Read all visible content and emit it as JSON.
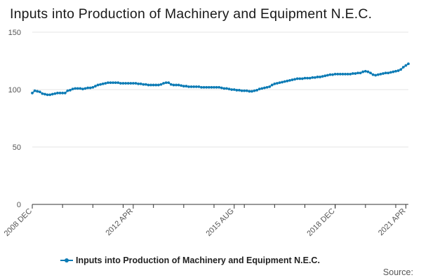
{
  "chart_data": {
    "type": "line",
    "title": "Inputs into Production of Machinery and Equipment N.E.C.",
    "source_label": "Source:",
    "ylim": [
      0,
      150
    ],
    "y_ticks": [
      "0",
      "50",
      "100",
      "150"
    ],
    "x_tick_labels": [
      {
        "label": "2008 DEC",
        "index": 0
      },
      {
        "label": "2012 APR",
        "index": 40
      },
      {
        "label": "2015 AUG",
        "index": 80
      },
      {
        "label": "2018 DEC",
        "index": 120
      },
      {
        "label": "2021 APR",
        "index": 148
      }
    ],
    "grid": "horizontal",
    "legend_position": "bottom",
    "colors": {
      "series": "#0c7bb5",
      "grid": "#e6e6e6",
      "axis": "#333333"
    },
    "series": [
      {
        "name": "Inputs into Production of Machinery and Equipment N.E.C.",
        "values": [
          97.0,
          99.0,
          98.5,
          98.0,
          96.5,
          96.0,
          95.5,
          95.5,
          96.0,
          96.5,
          97.0,
          97.0,
          97.0,
          97.0,
          99.0,
          99.5,
          100.5,
          101.0,
          101.0,
          101.0,
          100.5,
          101.0,
          101.5,
          101.5,
          102.0,
          103.0,
          104.0,
          104.5,
          105.0,
          105.5,
          106.0,
          106.0,
          106.0,
          106.0,
          106.0,
          105.5,
          105.5,
          105.5,
          105.5,
          105.5,
          105.5,
          105.5,
          105.0,
          105.0,
          104.5,
          104.5,
          104.0,
          104.0,
          104.0,
          104.0,
          104.0,
          104.5,
          105.5,
          106.0,
          106.0,
          104.5,
          104.0,
          104.0,
          104.0,
          103.5,
          103.0,
          103.0,
          102.5,
          102.5,
          102.5,
          102.5,
          102.5,
          102.0,
          102.0,
          102.0,
          102.0,
          102.0,
          102.0,
          102.0,
          102.0,
          101.5,
          101.0,
          101.0,
          100.5,
          100.0,
          100.0,
          99.5,
          99.5,
          99.0,
          99.0,
          99.0,
          98.5,
          98.5,
          99.0,
          99.5,
          100.5,
          101.0,
          101.5,
          102.0,
          102.5,
          104.0,
          105.0,
          105.5,
          106.0,
          106.5,
          107.0,
          107.5,
          108.0,
          108.5,
          109.0,
          109.5,
          109.5,
          109.5,
          110.0,
          110.0,
          110.0,
          110.5,
          110.5,
          111.0,
          111.0,
          111.5,
          112.0,
          112.5,
          113.0,
          113.0,
          113.5,
          113.5,
          113.5,
          113.5,
          113.5,
          113.5,
          113.5,
          114.0,
          114.0,
          114.5,
          114.5,
          115.5,
          116.0,
          115.5,
          114.5,
          113.0,
          112.5,
          113.0,
          113.5,
          114.0,
          114.5,
          114.5,
          115.0,
          115.5,
          116.0,
          116.5,
          117.5,
          119.5,
          121.0,
          122.5
        ]
      }
    ]
  }
}
